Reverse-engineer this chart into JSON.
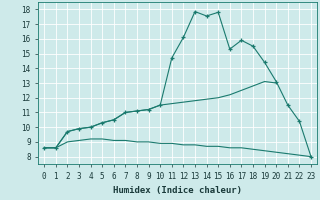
{
  "xlabel": "Humidex (Indice chaleur)",
  "background_color": "#ceeaea",
  "line_color": "#1a7a6e",
  "grid_color": "#ffffff",
  "xlim": [
    -0.5,
    23.5
  ],
  "ylim": [
    7.5,
    18.5
  ],
  "xticks": [
    0,
    1,
    2,
    3,
    4,
    5,
    6,
    7,
    8,
    9,
    10,
    11,
    12,
    13,
    14,
    15,
    16,
    17,
    18,
    19,
    20,
    21,
    22,
    23
  ],
  "yticks": [
    8,
    9,
    10,
    11,
    12,
    13,
    14,
    15,
    16,
    17,
    18
  ],
  "line1_x": [
    0,
    1,
    2,
    3,
    4,
    5,
    6,
    7,
    8,
    9,
    10,
    11,
    12,
    13,
    14,
    15,
    16,
    17,
    18,
    19,
    20,
    21,
    22,
    23
  ],
  "line1_y": [
    8.6,
    8.6,
    9.7,
    9.9,
    10.0,
    10.3,
    10.5,
    11.0,
    11.1,
    11.2,
    11.5,
    14.7,
    16.1,
    17.85,
    17.55,
    17.8,
    15.3,
    15.9,
    15.5,
    14.4,
    13.1,
    11.5,
    10.4,
    8.0
  ],
  "line2_x": [
    0,
    1,
    2,
    3,
    4,
    5,
    6,
    7,
    8,
    9,
    10,
    11,
    12,
    13,
    14,
    15,
    16,
    17,
    18,
    19,
    20
  ],
  "line2_y": [
    8.6,
    8.6,
    9.7,
    9.9,
    10.0,
    10.3,
    10.5,
    11.0,
    11.1,
    11.2,
    11.5,
    11.6,
    11.7,
    11.8,
    11.9,
    12.0,
    12.2,
    12.5,
    12.8,
    13.1,
    13.0
  ],
  "line3_x": [
    0,
    1,
    2,
    3,
    4,
    5,
    6,
    7,
    8,
    9,
    10,
    11,
    12,
    13,
    14,
    15,
    16,
    17,
    18,
    19,
    20,
    21,
    22,
    23
  ],
  "line3_y": [
    8.6,
    8.6,
    9.0,
    9.1,
    9.2,
    9.2,
    9.1,
    9.1,
    9.0,
    9.0,
    8.9,
    8.9,
    8.8,
    8.8,
    8.7,
    8.7,
    8.6,
    8.6,
    8.5,
    8.4,
    8.3,
    8.2,
    8.1,
    8.0
  ]
}
